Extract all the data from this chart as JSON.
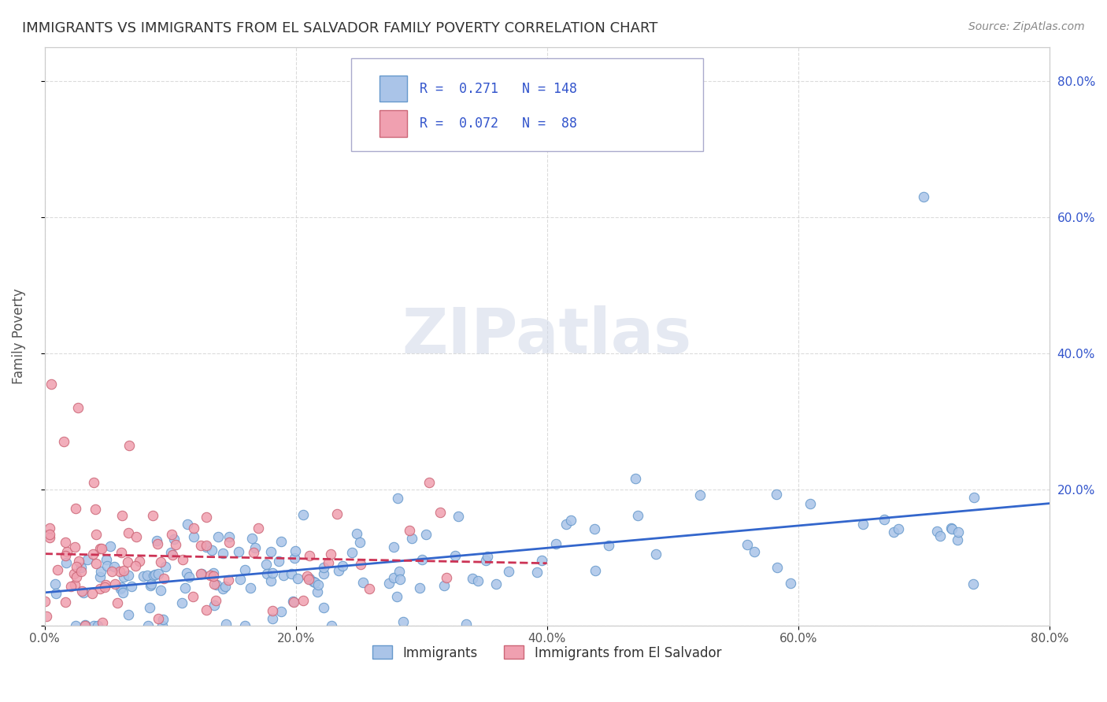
{
  "title": "IMMIGRANTS VS IMMIGRANTS FROM EL SALVADOR FAMILY POVERTY CORRELATION CHART",
  "source": "Source: ZipAtlas.com",
  "xlabel": "",
  "ylabel": "Family Poverty",
  "watermark": "ZIPatlas",
  "xlim": [
    0.0,
    0.8
  ],
  "ylim": [
    0.0,
    0.85
  ],
  "xticks": [
    0.0,
    0.2,
    0.4,
    0.6,
    0.8
  ],
  "yticks": [
    0.0,
    0.2,
    0.4,
    0.6,
    0.8
  ],
  "xtick_labels": [
    "0.0%",
    "20.0%",
    "40.0%",
    "60.0%",
    "80.0%"
  ],
  "ytick_labels": [
    "0.0%",
    "20.0%",
    "40.0%",
    "60.0%",
    "80.0%"
  ],
  "series1": {
    "label": "Immigrants",
    "color": "#aac4e8",
    "edge_color": "#6699cc",
    "R": 0.271,
    "N": 148,
    "trend_color": "#3366cc",
    "trend_style": "-"
  },
  "series2": {
    "label": "Immigrants from El Salvador",
    "color": "#f0a0b0",
    "edge_color": "#cc6677",
    "R": 0.072,
    "N": 88,
    "trend_color": "#cc3355",
    "trend_style": "--"
  },
  "legend_box_color": "#f0f4ff",
  "legend_text_color": "#3355cc",
  "title_color": "#333333",
  "grid_color": "#cccccc",
  "background_color": "#ffffff",
  "watermark_color": "#d0d8e8"
}
